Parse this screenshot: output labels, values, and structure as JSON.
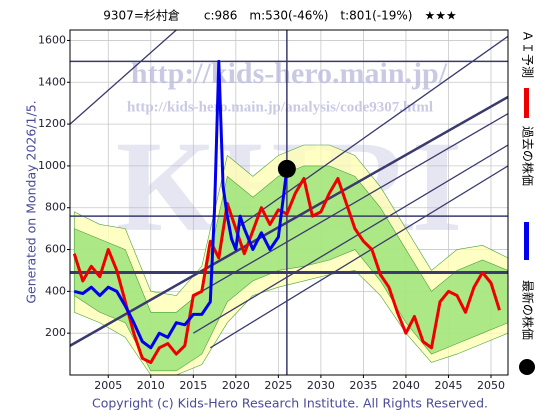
{
  "chart_data": {
    "type": "line",
    "title": "9307=杉村倉　　c:986　m:530(-46%)　t:801(-19%)　★★★",
    "ylabel": "Generated on Monday 2026/1/5.",
    "footer": "Copyright (c) Kids-Hero Research Institute. All Rights Reserved.",
    "watermarks": [
      "http://kids-hero.main.jp/",
      "http://kids-hero.main.jp/analysis/code9307.html",
      "KHRI"
    ],
    "xlim": [
      2000.5,
      2052
    ],
    "ylim": [
      0,
      1650
    ],
    "xticks": [
      2005,
      2010,
      2015,
      2020,
      2025,
      2030,
      2035,
      2040,
      2045,
      2050
    ],
    "yticks": [
      200,
      400,
      600,
      800,
      1000,
      1200,
      1400,
      1600
    ],
    "grid": true,
    "series": [
      {
        "name": "ＡＩ予測",
        "color": "#ee0000",
        "x": [
          2001,
          2002,
          2003,
          2004,
          2005,
          2006,
          2007,
          2008,
          2009,
          2010,
          2011,
          2012,
          2013,
          2014,
          2015,
          2016,
          2017,
          2018,
          2019,
          2020,
          2021,
          2022,
          2023,
          2024,
          2025,
          2026,
          2027,
          2028,
          2029,
          2030,
          2031,
          2032,
          2033,
          2034,
          2035,
          2036,
          2037,
          2038,
          2039,
          2040,
          2041,
          2042,
          2043,
          2044,
          2045,
          2046,
          2047,
          2048,
          2049,
          2050,
          2051
        ],
        "values": [
          580,
          450,
          520,
          470,
          600,
          500,
          350,
          200,
          80,
          60,
          130,
          150,
          100,
          140,
          380,
          400,
          640,
          560,
          820,
          700,
          580,
          690,
          800,
          720,
          790,
          770,
          870,
          940,
          760,
          780,
          870,
          940,
          820,
          700,
          640,
          600,
          480,
          420,
          300,
          200,
          280,
          160,
          130,
          350,
          400,
          380,
          300,
          420,
          490,
          440,
          310
        ]
      },
      {
        "name": "過去の株価",
        "color": "#0000ee",
        "x": [
          2001,
          2002,
          2003,
          2004,
          2005,
          2006,
          2007,
          2008,
          2009,
          2010,
          2011,
          2012,
          2013,
          2014,
          2015,
          2016,
          2017,
          2017.5,
          2018,
          2018.5,
          2019,
          2019.5,
          2020,
          2020.5,
          2021,
          2022,
          2023,
          2024,
          2025,
          2026
        ],
        "values": [
          400,
          390,
          420,
          380,
          420,
          400,
          330,
          250,
          160,
          130,
          200,
          180,
          250,
          240,
          290,
          290,
          350,
          800,
          1500,
          900,
          760,
          650,
          600,
          760,
          700,
          600,
          680,
          600,
          660,
          986
        ]
      }
    ],
    "latest": {
      "name": "最新の株価",
      "x": 2026,
      "value": 986,
      "color": "#000000"
    },
    "bands": [
      {
        "color": "#ffffb0",
        "x": [
          2001,
          2004,
          2007,
          2010,
          2013,
          2016,
          2019,
          2022,
          2025,
          2028,
          2031,
          2034,
          2037,
          2040,
          2043,
          2046,
          2049,
          2052
        ],
        "lower": [
          300,
          250,
          180,
          0,
          0,
          50,
          250,
          380,
          420,
          450,
          480,
          500,
          380,
          200,
          60,
          100,
          150,
          200
        ],
        "upper": [
          780,
          720,
          700,
          400,
          380,
          520,
          1050,
          950,
          1050,
          1100,
          1100,
          1050,
          900,
          700,
          500,
          600,
          620,
          560
        ]
      },
      {
        "color": "#90e070",
        "x": [
          2001,
          2004,
          2007,
          2010,
          2013,
          2016,
          2019,
          2022,
          2025,
          2028,
          2031,
          2034,
          2037,
          2040,
          2043,
          2046,
          2049,
          2052
        ],
        "lower": [
          380,
          300,
          250,
          20,
          20,
          100,
          350,
          450,
          500,
          520,
          550,
          600,
          450,
          250,
          100,
          150,
          200,
          250
        ],
        "upper": [
          700,
          650,
          600,
          300,
          300,
          400,
          950,
          850,
          950,
          1000,
          1000,
          950,
          800,
          600,
          400,
          500,
          550,
          500
        ]
      }
    ],
    "hlines": [
      1500,
      760,
      490
    ],
    "trendlines": [
      {
        "x1": 2000.5,
        "y1": 1200,
        "x2": 2013,
        "y2": 1650
      },
      {
        "x1": 2000.5,
        "y1": 140,
        "x2": 2052,
        "y2": 1330
      },
      {
        "x1": 2015,
        "y1": 200,
        "x2": 2052,
        "y2": 1100
      },
      {
        "x1": 2017,
        "y1": 130,
        "x2": 2052,
        "y2": 1000
      },
      {
        "x1": 2020,
        "y1": 700,
        "x2": 2052,
        "y2": 1620
      },
      {
        "x1": 2016,
        "y1": 400,
        "x2": 2052,
        "y2": 1250
      }
    ],
    "line_color": "#3a3a6e"
  }
}
